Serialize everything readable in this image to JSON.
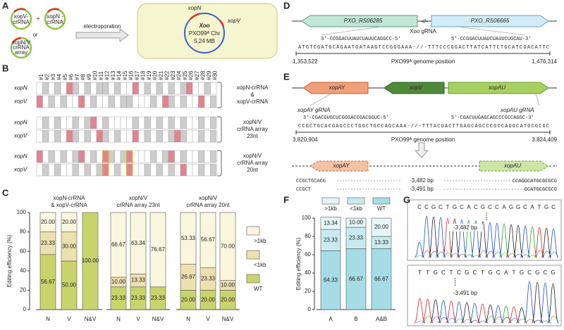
{
  "panel_labels": [
    "A",
    "B",
    "C",
    "D",
    "E",
    "F",
    "G"
  ],
  "panel_a": {
    "plasmid_1": [
      "xopV-",
      "crRNA"
    ],
    "plus": "+",
    "plasmid_2": [
      "xopN -",
      "crRNA"
    ],
    "or": "or",
    "plasmid_3": [
      "xopN/V",
      "crRNA",
      "array"
    ],
    "arrow": "electroporation",
    "gene_1": "xopN",
    "gene_2": "xopV",
    "organism": "Xoo",
    "chromosome": "PXO99ᴬ Chr",
    "size": "5.24 MB"
  },
  "panel_b": {
    "columns": [
      "#1",
      "#2",
      "#3",
      "#4",
      "#5",
      "#6",
      "#7",
      "#8",
      "#9",
      "#10",
      "#11",
      "#12",
      "#13",
      "#14",
      "#15",
      "#16",
      "#17",
      "#18",
      "#19",
      "#20",
      "#21",
      "#22",
      "#23",
      "#24",
      "#25",
      "#26",
      "#27",
      "#28",
      "#29",
      "#30"
    ],
    "groups": [
      {
        "label": [
          "xopN-crRNA",
          "&",
          "xopV-crRNA"
        ],
        "rows": [
          {
            "name": "xopN",
            "cells": [
              "#fff",
              "#ccc",
              "#fff",
              "#ccc",
              "#fff",
              "#e4828f",
              "#ccc",
              "#fff",
              "#ccc",
              "#fff",
              "#ccc",
              "#ccc",
              "#fff",
              "#ccc",
              "#fff",
              "#fff",
              "#e4828f",
              "#fff",
              "#ccc",
              "#fff",
              "#ccc",
              "#fff",
              "#ccc",
              "#fff",
              "#ccc",
              "#e4828f",
              "#fff",
              "#fff",
              "#ccc",
              "#fff"
            ]
          },
          {
            "name": "xopV",
            "cells": [
              "#e4828f",
              "#fff",
              "#ccc",
              "#fff",
              "#ccc",
              "#fff",
              "#fff",
              "#e4828f",
              "#fff",
              "#ccc",
              "#fff",
              "#fff",
              "#ccc",
              "#fff",
              "#ccc",
              "#ccc",
              "#fff",
              "#fff",
              "#fff",
              "#ccc",
              "#fff",
              "#e4828f",
              "#ccc",
              "#fff",
              "#ccc",
              "#fff",
              "#fff",
              "#e4828f",
              "#fff",
              "#ccc"
            ]
          }
        ]
      },
      {
        "label": [
          "xopN/V",
          "crRNA array",
          "23nt"
        ],
        "rows": [
          {
            "name": "xopN",
            "cells": [
              "#fff",
              "#ccc",
              "#fff",
              "#ccc",
              "#fff",
              "#fff",
              "#ccc",
              "#fff",
              "#ccc",
              "#e4828f",
              "#fff",
              "#ccc",
              "#fff",
              "#fff",
              "#fff",
              "#fff",
              "#ccc",
              "#fff",
              "#ccc",
              "#fff",
              "#ccc",
              "#fff",
              "#ccc",
              "#fff",
              "#ccc",
              "#fff",
              "#fff",
              "#ccc",
              "#fff",
              "#ccc"
            ]
          },
          {
            "name": "xopV",
            "cells": [
              "#fff",
              "#ccc",
              "#fff",
              "#ccc",
              "#fff",
              "#e4828f",
              "#ccc",
              "#fff",
              "#ccc",
              "#fff",
              "#e4828f",
              "#ccc",
              "#fff",
              "#ccc",
              "#fff",
              "#fff",
              "#e4828f",
              "#fff",
              "#ccc",
              "#fff",
              "#ccc",
              "#fff",
              "#ccc",
              "#e4828f",
              "#ccc",
              "#fff",
              "#fff",
              "#ccc",
              "#fff",
              "#ccc"
            ]
          }
        ]
      },
      {
        "label": [
          "xopN/V",
          "crRNA array",
          "20nt"
        ],
        "rows": [
          {
            "name": "xopN",
            "cells": [
              "#e4828f",
              "#fff",
              "#ccc",
              "#fff",
              "#ccc",
              "#fff",
              "#ccc",
              "#e4828f",
              "#fff",
              "#ccc",
              "#fff",
              "#e4828f",
              "#ccc",
              "#fff",
              "#ccc",
              "#e4828f",
              "#fff",
              "#fff",
              "#fff",
              "#ccc",
              "#fff",
              "#ccc",
              "#e4828f",
              "#fff",
              "#ccc",
              "#fff",
              "#fff",
              "#ccc",
              "#fff",
              "#ccc"
            ]
          },
          {
            "name": "xopV",
            "cells": [
              "#fff",
              "#ccc",
              "#fff",
              "#ccc",
              "#fff",
              "#fff",
              "#ccc",
              "#fff",
              "#ccc",
              "#fff",
              "#ccc",
              "#e4828f",
              "#fff",
              "#ccc",
              "#fff",
              "#e4828f",
              "#fff",
              "#fff",
              "#ccc",
              "#fff",
              "#ccc",
              "#fff",
              "#ccc",
              "#fff",
              "#e4828f",
              "#fff",
              "#fff",
              "#ccc",
              "#fff",
              "#ccc"
            ]
          }
        ]
      }
    ]
  },
  "chart_data": [
    {
      "type": "bar",
      "stacked": true,
      "title": [
        "xopN-crRNA",
        "& xopV-crRNA"
      ],
      "y_label": "Editing efficiency (%)",
      "ylim": [
        0,
        100
      ],
      "yticks": [
        0,
        20,
        40,
        60,
        80,
        100
      ],
      "legend": "right",
      "categories": [
        "N",
        "V",
        "N&V"
      ],
      "series": [
        {
          "name": "WT",
          "color": "#c9d46c",
          "values": [
            56.67,
            50,
            100
          ],
          "value_labels": [
            "56.67",
            "50.00",
            "100.00"
          ]
        },
        {
          "name": "<1kb",
          "color": "#ece0ae",
          "values": [
            23.33,
            30,
            null
          ],
          "value_labels": [
            "23.33",
            "30.00",
            null
          ]
        },
        {
          "name": ">1kb",
          "color": "#fbf7df",
          "values": [
            20,
            20,
            null
          ],
          "value_labels": [
            "20.00",
            "20.00",
            null
          ]
        }
      ]
    },
    {
      "type": "bar",
      "stacked": true,
      "title": [
        "xopN/V",
        "crRNA array 23nt"
      ],
      "categories": [
        "N",
        "V",
        "N&V"
      ],
      "series": [
        {
          "color": "#c9d46c",
          "values": [
            23.33,
            23.33,
            23.33
          ],
          "value_labels": [
            "23.33",
            "23.33",
            "23.33"
          ]
        },
        {
          "color": "#ece0ae",
          "values": [
            10,
            13.33,
            null
          ],
          "value_labels": [
            "10.00",
            "13.33",
            null
          ]
        },
        {
          "color": "#fbf7df",
          "values": [
            66.67,
            63.34,
            76.67
          ],
          "value_labels": [
            "66.67",
            "63.34",
            "76.67"
          ]
        }
      ]
    },
    {
      "type": "bar",
      "stacked": true,
      "title": [
        "xopN/V",
        "crRNA array 20nt"
      ],
      "categories": [
        "N",
        "V",
        "N&V"
      ],
      "series": [
        {
          "color": "#c9d46c",
          "values": [
            20,
            20,
            20
          ],
          "value_labels": [
            "20.00",
            "20.00",
            "20.00"
          ]
        },
        {
          "color": "#ece0ae",
          "values": [
            26.67,
            23.33,
            10
          ],
          "value_labels": [
            "26.67",
            "23.33",
            "10.00"
          ]
        },
        {
          "color": "#fbf7df",
          "values": [
            53.33,
            56.67,
            70
          ],
          "value_labels": [
            "53.33",
            "56.67",
            "70.00"
          ]
        }
      ]
    },
    {
      "type": "bar",
      "stacked": true,
      "y_label": "Editing efficiency (%)",
      "ylim": [
        0,
        100
      ],
      "yticks": [
        0,
        20,
        40,
        60,
        80,
        100
      ],
      "legend": "top",
      "categories": [
        "A",
        "B",
        "A&B"
      ],
      "series": [
        {
          "name": "WT",
          "color": "#a6dce6",
          "values": [
            64.33,
            66.67,
            66.67
          ],
          "value_labels": [
            "64.33",
            "66.67",
            "66.67"
          ]
        },
        {
          "name": "<1kb",
          "color": "#c9ebf0",
          "values": [
            23.33,
            23.33,
            13.33
          ],
          "value_labels": [
            "23.33",
            "23.33",
            "13.33"
          ]
        },
        {
          "name": ">1kb",
          "color": "#e6f6f8",
          "values": [
            13.34,
            10,
            20
          ],
          "value_labels": [
            "13.34",
            "10.00",
            "20.00"
          ]
        }
      ]
    }
  ],
  "panel_d": {
    "gene_left": "PXO_RS06285",
    "gene_right": "PXO_RS06665",
    "break": "-//-",
    "grna": "Xoo gRNA",
    "grna_left": "3′-CCGGACUUAUCUAUUCAGGCC-5′",
    "grna_right": "5′-CCGGACUUAUCUAUUCUGCAU-3′",
    "sequence": "ATGTCGATGCAGAATGATAAGTCCGGGAAA-//-TTTCCCGGACTTATCATTCTGCATCGACATTC",
    "pos_left": "1,353,522",
    "pos_right": "1,476,314",
    "axis": "PXO99ᴬ genome position"
  },
  "panel_e": {
    "gene_1": "xopAY",
    "gene_2": "xopV",
    "gene_3": "xopAU",
    "grna_1": "xopAY gRNA",
    "grna_2": "xopAU gRNA",
    "grna_left": "3′-CGACGUGCUCGGGACCGACGGUC-5′",
    "grna_right": "5′-CGACUUGAGCAGCCCGCCAGGC-3′",
    "sequence": "CCGCTGCACGAGCCCTGGCTGCCAGCAAA-//-TTTACGACTTGAGCAGCCCGCCAGGCATGCGCGC",
    "pos_left": "3,820,904",
    "pos_right": "3,824,409",
    "axis": "PXO99ᴬ genome position",
    "deleted": [
      {
        "left": "CCGCTGCACG",
        "size": "-3,482 bp",
        "right": "CCAGGCATGCGCGCG"
      },
      {
        "left": "CCGCT",
        "size": "-3,491 bp",
        "right": "GCATGCGCGCG"
      }
    ]
  },
  "panel_g": {
    "traces": [
      {
        "bases": "CCGCTGCACGCCAGGCATGC",
        "label": "-3,482 bp"
      },
      {
        "bases": "TTGCTCGCTGCATGCGCG",
        "label": "-3,491 bp"
      }
    ]
  }
}
